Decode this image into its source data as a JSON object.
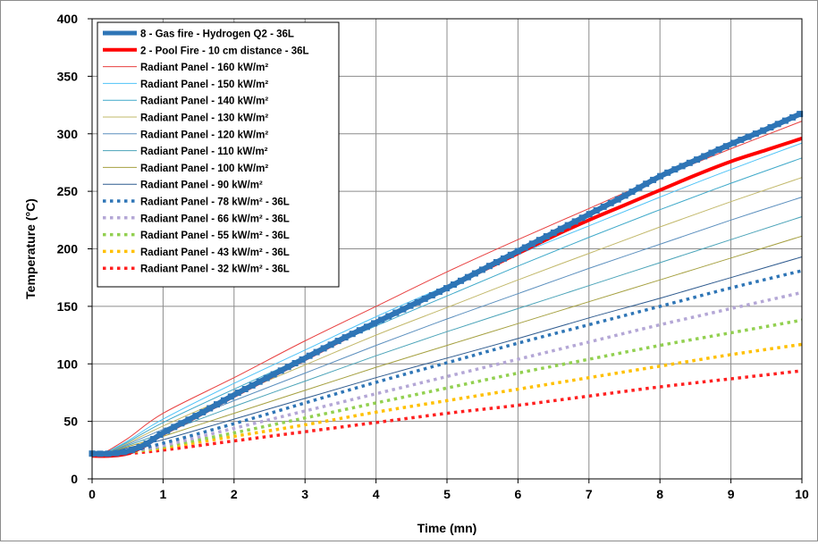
{
  "chart_data": {
    "type": "line",
    "title": "",
    "xlabel": "Time (mn)",
    "ylabel": "Temperature (°C)",
    "xlim": [
      0,
      10
    ],
    "ylim": [
      0,
      400
    ],
    "xticks": [
      0,
      1,
      2,
      3,
      4,
      5,
      6,
      7,
      8,
      9,
      10
    ],
    "yticks": [
      0,
      50,
      100,
      150,
      200,
      250,
      300,
      350,
      400
    ],
    "grid": true,
    "legend_position": "top-left",
    "series": [
      {
        "name": "8 - Gas fire - Hydrogen Q2 - 36L",
        "style": "thick-markers",
        "color": "#2e75b6",
        "x": [
          0,
          0.25,
          0.5,
          0.75,
          1,
          1.5,
          2,
          2.5,
          3,
          3.5,
          4,
          4.5,
          5,
          5.5,
          6,
          6.5,
          7,
          7.5,
          8,
          8.5,
          9,
          9.5,
          10
        ],
        "y": [
          22,
          22,
          24,
          30,
          40,
          56,
          73,
          89,
          105,
          121,
          136,
          151,
          166,
          182,
          198,
          214,
          230,
          246,
          263,
          277,
          291,
          304,
          318
        ]
      },
      {
        "name": "2 - Pool Fire - 10 cm distance - 36L",
        "style": "thick",
        "color": "#ff0000",
        "x": [
          0,
          0.25,
          0.5,
          0.75,
          1,
          1.5,
          2,
          2.5,
          3,
          3.5,
          4,
          4.5,
          5,
          5.5,
          6,
          6.5,
          7,
          7.5,
          8,
          8.5,
          9,
          9.5,
          10
        ],
        "y": [
          20,
          20,
          22,
          29,
          39,
          55,
          72,
          88,
          104,
          120,
          136,
          151,
          166,
          181,
          196,
          211,
          225,
          238,
          251,
          264,
          276,
          286,
          296
        ]
      },
      {
        "name": "Radiant Panel - 160 kW/m²",
        "style": "thin",
        "color": "#e84040",
        "x": [
          0.1,
          0.5,
          1,
          2,
          3,
          4,
          5,
          6,
          7,
          8,
          9,
          10
        ],
        "y": [
          20,
          35,
          57,
          88,
          120,
          150,
          180,
          208,
          235,
          262,
          287,
          311
        ]
      },
      {
        "name": "Radiant Panel - 150 kW/m²",
        "style": "thin",
        "color": "#4fc3f7",
        "x": [
          0.1,
          0.5,
          1,
          2,
          3,
          4,
          5,
          6,
          7,
          8,
          9,
          10
        ],
        "y": [
          20,
          33,
          52,
          83,
          112,
          141,
          168,
          195,
          220,
          245,
          269,
          292
        ]
      },
      {
        "name": "Radiant Panel - 140 kW/m²",
        "style": "thin",
        "color": "#3fa9c9",
        "x": [
          0.1,
          0.5,
          1,
          2,
          3,
          4,
          5,
          6,
          7,
          8,
          9,
          10
        ],
        "y": [
          20,
          32,
          49,
          78,
          106,
          133,
          159,
          185,
          210,
          234,
          257,
          279
        ]
      },
      {
        "name": "Radiant Panel - 130 kW/m²",
        "style": "thin",
        "color": "#c2b86a",
        "x": [
          0.1,
          0.5,
          1,
          2,
          3,
          4,
          5,
          6,
          7,
          8,
          9,
          10
        ],
        "y": [
          20,
          31,
          46,
          73,
          99,
          125,
          149,
          173,
          196,
          219,
          241,
          262
        ]
      },
      {
        "name": "Radiant Panel - 120 kW/m²",
        "style": "thin",
        "color": "#5b8fbe",
        "x": [
          0.1,
          0.5,
          1,
          2,
          3,
          4,
          5,
          6,
          7,
          8,
          9,
          10
        ],
        "y": [
          20,
          30,
          43,
          68,
          92,
          116,
          139,
          161,
          183,
          204,
          225,
          245
        ]
      },
      {
        "name": "Radiant Panel - 110 kW/m²",
        "style": "thin",
        "color": "#4aa3b8",
        "x": [
          0.1,
          0.5,
          1,
          2,
          3,
          4,
          5,
          6,
          7,
          8,
          9,
          10
        ],
        "y": [
          20,
          29,
          40,
          63,
          85,
          107,
          128,
          148,
          168,
          188,
          208,
          228
        ]
      },
      {
        "name": "Radiant Panel - 100 kW/m²",
        "style": "thin",
        "color": "#a5a040",
        "x": [
          0.1,
          0.5,
          1,
          2,
          3,
          4,
          5,
          6,
          7,
          8,
          9,
          10
        ],
        "y": [
          20,
          28,
          37,
          57,
          77,
          97,
          116,
          135,
          154,
          173,
          192,
          211
        ]
      },
      {
        "name": "Radiant Panel - 90 kW/m²",
        "style": "thin",
        "color": "#2f5b8f",
        "x": [
          0.1,
          0.5,
          1,
          2,
          3,
          4,
          5,
          6,
          7,
          8,
          9,
          10
        ],
        "y": [
          20,
          27,
          34,
          52,
          70,
          88,
          105,
          122,
          140,
          157,
          175,
          193
        ]
      },
      {
        "name": "Radiant Panel - 78 kW/m² - 36L",
        "style": "dotted",
        "color": "#2e75b6",
        "x": [
          0.1,
          0.5,
          1,
          2,
          3,
          4,
          5,
          6,
          7,
          8,
          9,
          10
        ],
        "y": [
          20,
          24,
          31,
          48,
          66,
          84,
          101,
          118,
          134,
          150,
          166,
          181
        ]
      },
      {
        "name": "Radiant Panel - 66 kW/m² - 36L",
        "style": "dotted",
        "color": "#b4a7d6",
        "x": [
          0.1,
          0.5,
          1,
          2,
          3,
          4,
          5,
          6,
          7,
          8,
          9,
          10
        ],
        "y": [
          20,
          24,
          29,
          44,
          59,
          74,
          89,
          104,
          119,
          134,
          148,
          162
        ]
      },
      {
        "name": "Radiant Panel - 55 kW/m² - 36L",
        "style": "dotted",
        "color": "#92d050",
        "x": [
          0.1,
          0.5,
          1,
          2,
          3,
          4,
          5,
          6,
          7,
          8,
          9,
          10
        ],
        "y": [
          20,
          23,
          28,
          40,
          53,
          66,
          79,
          92,
          104,
          116,
          127,
          138
        ]
      },
      {
        "name": "Radiant Panel - 43 kW/m² - 36L",
        "style": "dotted",
        "color": "#ffc000",
        "x": [
          0.1,
          0.5,
          1,
          2,
          3,
          4,
          5,
          6,
          7,
          8,
          9,
          10
        ],
        "y": [
          20,
          23,
          27,
          37,
          47,
          58,
          68,
          78,
          88,
          98,
          108,
          117
        ]
      },
      {
        "name": "Radiant Panel - 32 kW/m² - 36L",
        "style": "dotted",
        "color": "#ff2020",
        "x": [
          0.1,
          0.5,
          1,
          2,
          3,
          4,
          5,
          6,
          7,
          8,
          9,
          10
        ],
        "y": [
          20,
          22,
          25,
          33,
          41,
          49,
          57,
          64,
          72,
          80,
          87,
          94
        ]
      }
    ]
  }
}
